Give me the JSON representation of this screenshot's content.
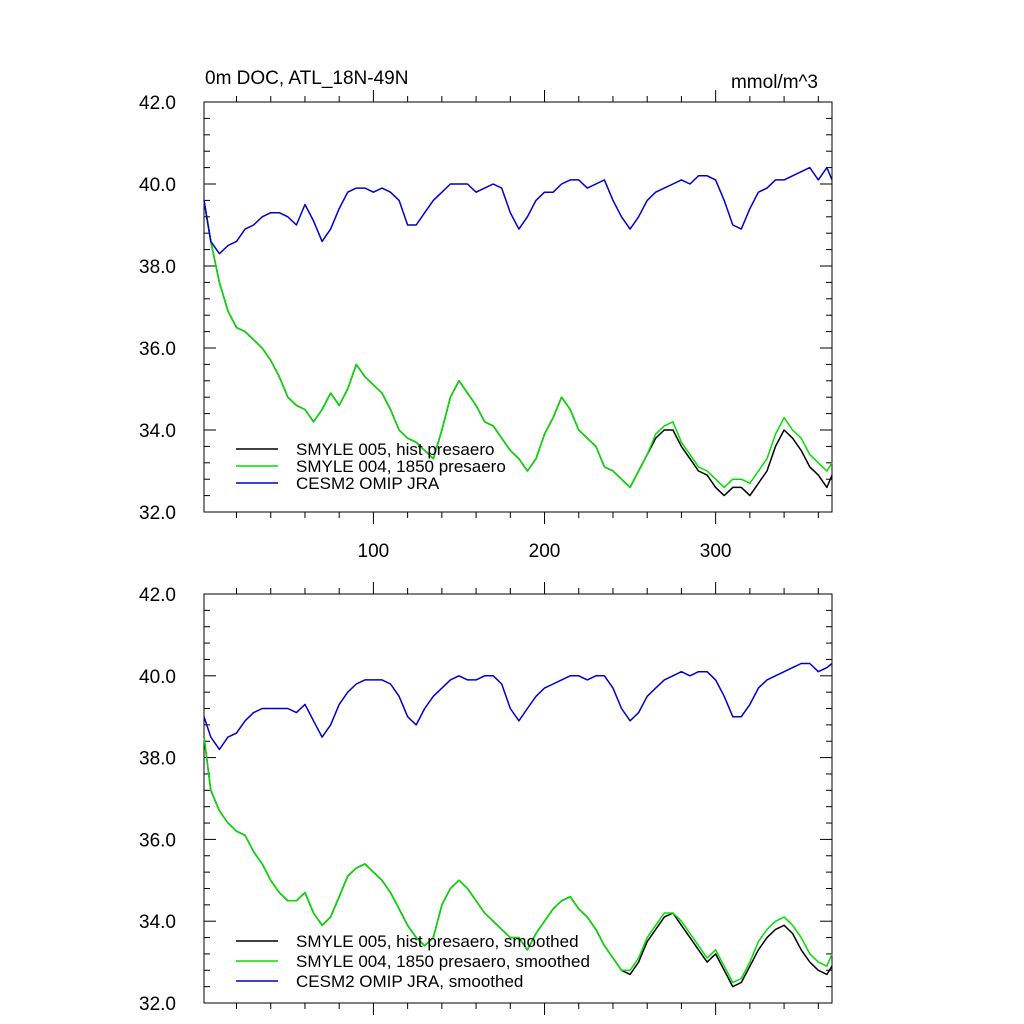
{
  "chart_data": [
    {
      "type": "line",
      "title": "0m DOC, ATL_18N-49N",
      "units": "mmol/m^3",
      "xlim": [
        1,
        368
      ],
      "ylim": [
        32.0,
        42.0
      ],
      "xticks": [
        100,
        200,
        300
      ],
      "xtick_labels": [
        "100",
        "200",
        "300"
      ],
      "yticks": [
        32.0,
        34.0,
        36.0,
        38.0,
        40.0,
        42.0
      ],
      "ytick_labels": [
        "32.0",
        "34.0",
        "36.0",
        "38.0",
        "40.0",
        "42.0"
      ],
      "legend_position": "bottom-left",
      "series": [
        {
          "name": "SMYLE 005, hist presaero",
          "color": "#000000",
          "x": [
            1,
            5,
            10,
            15,
            20,
            25,
            30,
            35,
            40,
            45,
            50,
            55,
            60,
            65,
            70,
            75,
            80,
            85,
            90,
            95,
            100,
            105,
            110,
            115,
            120,
            125,
            130,
            135,
            140,
            145,
            150,
            155,
            160,
            165,
            170,
            175,
            180,
            185,
            190,
            195,
            200,
            205,
            210,
            215,
            220,
            225,
            230,
            235,
            240,
            245,
            250,
            255,
            260,
            265,
            270,
            275,
            280,
            285,
            290,
            295,
            300,
            305,
            310,
            315,
            320,
            325,
            330,
            335,
            340,
            345,
            350,
            355,
            360,
            365,
            368
          ],
          "y": [
            39.6,
            38.6,
            37.6,
            36.9,
            36.5,
            36.4,
            36.2,
            36.0,
            35.7,
            35.3,
            34.8,
            34.6,
            34.5,
            34.2,
            34.5,
            34.9,
            34.6,
            35.0,
            35.6,
            35.3,
            35.1,
            34.9,
            34.5,
            34.0,
            33.8,
            33.7,
            33.5,
            33.3,
            34.0,
            34.8,
            35.2,
            34.9,
            34.6,
            34.2,
            34.1,
            33.8,
            33.5,
            33.3,
            33.0,
            33.3,
            33.9,
            34.3,
            34.8,
            34.5,
            34.0,
            33.8,
            33.6,
            33.1,
            33.0,
            32.8,
            32.6,
            33.0,
            33.4,
            33.8,
            34.0,
            34.0,
            33.6,
            33.3,
            33.0,
            32.9,
            32.6,
            32.4,
            32.6,
            32.6,
            32.4,
            32.7,
            33.0,
            33.6,
            34.0,
            33.8,
            33.5,
            33.1,
            32.9,
            32.6,
            32.9
          ]
        },
        {
          "name": "SMYLE 004, 1850 presaero",
          "color": "#00e000",
          "x": [
            1,
            5,
            10,
            15,
            20,
            25,
            30,
            35,
            40,
            45,
            50,
            55,
            60,
            65,
            70,
            75,
            80,
            85,
            90,
            95,
            100,
            105,
            110,
            115,
            120,
            125,
            130,
            135,
            140,
            145,
            150,
            155,
            160,
            165,
            170,
            175,
            180,
            185,
            190,
            195,
            200,
            205,
            210,
            215,
            220,
            225,
            230,
            235,
            240,
            245,
            250,
            255,
            260,
            265,
            270,
            275,
            280,
            285,
            290,
            295,
            300,
            305,
            310,
            315,
            320,
            325,
            330,
            335,
            340,
            345,
            350,
            355,
            360,
            365,
            368
          ],
          "y": [
            39.6,
            38.6,
            37.6,
            36.9,
            36.5,
            36.4,
            36.2,
            36.0,
            35.7,
            35.3,
            34.8,
            34.6,
            34.5,
            34.2,
            34.5,
            34.9,
            34.6,
            35.0,
            35.6,
            35.3,
            35.1,
            34.9,
            34.5,
            34.0,
            33.8,
            33.7,
            33.5,
            33.3,
            34.0,
            34.8,
            35.2,
            34.9,
            34.6,
            34.2,
            34.1,
            33.8,
            33.5,
            33.3,
            33.0,
            33.3,
            33.9,
            34.3,
            34.8,
            34.5,
            34.0,
            33.8,
            33.6,
            33.1,
            33.0,
            32.8,
            32.6,
            33.0,
            33.4,
            33.9,
            34.1,
            34.2,
            33.7,
            33.4,
            33.1,
            33.0,
            32.8,
            32.6,
            32.8,
            32.8,
            32.7,
            33.0,
            33.3,
            33.9,
            34.3,
            34.0,
            33.8,
            33.4,
            33.2,
            33.0,
            33.2
          ]
        },
        {
          "name": "CESM2 OMIP JRA",
          "color": "#0000cc",
          "x": [
            1,
            5,
            10,
            15,
            20,
            25,
            30,
            35,
            40,
            45,
            50,
            55,
            60,
            65,
            70,
            75,
            80,
            85,
            90,
            95,
            100,
            105,
            110,
            115,
            120,
            125,
            130,
            135,
            140,
            145,
            150,
            155,
            160,
            165,
            170,
            175,
            180,
            185,
            190,
            195,
            200,
            205,
            210,
            215,
            220,
            225,
            230,
            235,
            240,
            245,
            250,
            255,
            260,
            265,
            270,
            275,
            280,
            285,
            290,
            295,
            300,
            305,
            310,
            315,
            320,
            325,
            330,
            335,
            340,
            345,
            350,
            355,
            360,
            365,
            368
          ],
          "y": [
            39.6,
            38.6,
            38.3,
            38.5,
            38.6,
            38.9,
            39.0,
            39.2,
            39.3,
            39.3,
            39.2,
            39.0,
            39.5,
            39.1,
            38.6,
            38.9,
            39.4,
            39.8,
            39.9,
            39.9,
            39.8,
            39.9,
            39.8,
            39.6,
            39.0,
            39.0,
            39.3,
            39.6,
            39.8,
            40.0,
            40.0,
            40.0,
            39.8,
            39.9,
            40.0,
            39.9,
            39.3,
            38.9,
            39.2,
            39.6,
            39.8,
            39.8,
            40.0,
            40.1,
            40.1,
            39.9,
            40.0,
            40.1,
            39.6,
            39.2,
            38.9,
            39.2,
            39.6,
            39.8,
            39.9,
            40.0,
            40.1,
            40.0,
            40.2,
            40.2,
            40.1,
            39.6,
            39.0,
            38.9,
            39.4,
            39.8,
            39.9,
            40.1,
            40.1,
            40.2,
            40.3,
            40.4,
            40.1,
            40.4,
            40.1
          ]
        }
      ]
    },
    {
      "type": "line",
      "xlim": [
        1,
        368
      ],
      "ylim": [
        32.0,
        42.0
      ],
      "xticks": [
        100,
        200,
        300
      ],
      "yticks": [
        32.0,
        34.0,
        36.0,
        38.0,
        40.0,
        42.0
      ],
      "ytick_labels": [
        "32.0",
        "34.0",
        "36.0",
        "38.0",
        "40.0",
        "42.0"
      ],
      "legend_position": "bottom-left",
      "series": [
        {
          "name": "SMYLE 005, hist presaero, smoothed",
          "color": "#000000",
          "x": [
            1,
            5,
            10,
            15,
            20,
            25,
            30,
            35,
            40,
            45,
            50,
            55,
            60,
            65,
            70,
            75,
            80,
            85,
            90,
            95,
            100,
            105,
            110,
            115,
            120,
            125,
            130,
            135,
            140,
            145,
            150,
            155,
            160,
            165,
            170,
            175,
            180,
            185,
            190,
            195,
            200,
            205,
            210,
            215,
            220,
            225,
            230,
            235,
            240,
            245,
            250,
            255,
            260,
            265,
            270,
            275,
            280,
            285,
            290,
            295,
            300,
            305,
            310,
            315,
            320,
            325,
            330,
            335,
            340,
            345,
            350,
            355,
            360,
            365,
            368
          ],
          "y": [
            38.5,
            37.2,
            36.7,
            36.4,
            36.2,
            36.1,
            35.7,
            35.4,
            35.0,
            34.7,
            34.5,
            34.5,
            34.7,
            34.2,
            33.9,
            34.1,
            34.6,
            35.1,
            35.3,
            35.4,
            35.2,
            35.0,
            34.7,
            34.3,
            33.9,
            33.6,
            33.4,
            33.6,
            34.4,
            34.8,
            35.0,
            34.8,
            34.5,
            34.2,
            34.0,
            33.8,
            33.6,
            33.6,
            33.3,
            33.7,
            34.0,
            34.3,
            34.5,
            34.6,
            34.3,
            34.1,
            33.8,
            33.4,
            33.1,
            32.8,
            32.7,
            33.0,
            33.5,
            33.8,
            34.1,
            34.2,
            33.9,
            33.6,
            33.3,
            33.0,
            33.2,
            32.8,
            32.4,
            32.5,
            32.9,
            33.3,
            33.6,
            33.8,
            33.9,
            33.7,
            33.3,
            33.0,
            32.8,
            32.7,
            32.9
          ]
        },
        {
          "name": "SMYLE 004, 1850 presaero, smoothed",
          "color": "#00e000",
          "x": [
            1,
            5,
            10,
            15,
            20,
            25,
            30,
            35,
            40,
            45,
            50,
            55,
            60,
            65,
            70,
            75,
            80,
            85,
            90,
            95,
            100,
            105,
            110,
            115,
            120,
            125,
            130,
            135,
            140,
            145,
            150,
            155,
            160,
            165,
            170,
            175,
            180,
            185,
            190,
            195,
            200,
            205,
            210,
            215,
            220,
            225,
            230,
            235,
            240,
            245,
            250,
            255,
            260,
            265,
            270,
            275,
            280,
            285,
            290,
            295,
            300,
            305,
            310,
            315,
            320,
            325,
            330,
            335,
            340,
            345,
            350,
            355,
            360,
            365,
            368
          ],
          "y": [
            38.5,
            37.2,
            36.7,
            36.4,
            36.2,
            36.1,
            35.7,
            35.4,
            35.0,
            34.7,
            34.5,
            34.5,
            34.7,
            34.2,
            33.9,
            34.1,
            34.6,
            35.1,
            35.3,
            35.4,
            35.2,
            35.0,
            34.7,
            34.3,
            33.9,
            33.6,
            33.4,
            33.6,
            34.4,
            34.8,
            35.0,
            34.8,
            34.5,
            34.2,
            34.0,
            33.8,
            33.6,
            33.6,
            33.3,
            33.7,
            34.0,
            34.3,
            34.5,
            34.6,
            34.3,
            34.1,
            33.8,
            33.4,
            33.1,
            32.8,
            32.8,
            33.1,
            33.6,
            33.9,
            34.2,
            34.2,
            34.0,
            33.7,
            33.4,
            33.1,
            33.3,
            32.9,
            32.5,
            32.6,
            33.0,
            33.5,
            33.8,
            34.0,
            34.1,
            33.9,
            33.6,
            33.2,
            33.0,
            32.9,
            33.2
          ]
        },
        {
          "name": "CESM2 OMIP JRA, smoothed",
          "color": "#0000cc",
          "x": [
            1,
            5,
            10,
            15,
            20,
            25,
            30,
            35,
            40,
            45,
            50,
            55,
            60,
            65,
            70,
            75,
            80,
            85,
            90,
            95,
            100,
            105,
            110,
            115,
            120,
            125,
            130,
            135,
            140,
            145,
            150,
            155,
            160,
            165,
            170,
            175,
            180,
            185,
            190,
            195,
            200,
            205,
            210,
            215,
            220,
            225,
            230,
            235,
            240,
            245,
            250,
            255,
            260,
            265,
            270,
            275,
            280,
            285,
            290,
            295,
            300,
            305,
            310,
            315,
            320,
            325,
            330,
            335,
            340,
            345,
            350,
            355,
            360,
            365,
            368
          ],
          "y": [
            39.0,
            38.5,
            38.2,
            38.5,
            38.6,
            38.9,
            39.1,
            39.2,
            39.2,
            39.2,
            39.2,
            39.1,
            39.3,
            38.9,
            38.5,
            38.8,
            39.3,
            39.6,
            39.8,
            39.9,
            39.9,
            39.9,
            39.8,
            39.5,
            39.0,
            38.8,
            39.2,
            39.5,
            39.7,
            39.9,
            40.0,
            39.9,
            39.9,
            40.0,
            40.0,
            39.8,
            39.2,
            38.9,
            39.2,
            39.5,
            39.7,
            39.8,
            39.9,
            40.0,
            40.0,
            39.9,
            40.0,
            40.0,
            39.7,
            39.2,
            38.9,
            39.1,
            39.5,
            39.7,
            39.9,
            40.0,
            40.1,
            40.0,
            40.1,
            40.1,
            39.9,
            39.5,
            39.0,
            39.0,
            39.3,
            39.7,
            39.9,
            40.0,
            40.1,
            40.2,
            40.3,
            40.3,
            40.1,
            40.2,
            40.3
          ]
        }
      ]
    }
  ]
}
